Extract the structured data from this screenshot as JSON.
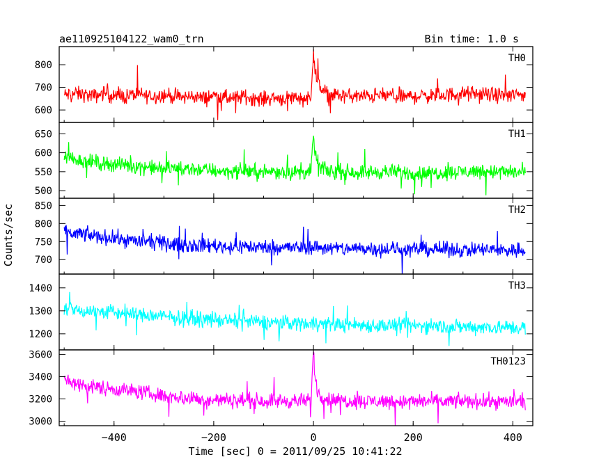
{
  "chart_data": {
    "type": "line",
    "title": "ae110925104122_wam0_trn",
    "subtitle": "Bin time: 1.0 s",
    "xlabel": "Time [sec] 0 = 2011/09/25 10:41:22",
    "ylabel": "Counts/sec",
    "xlim": [
      -510,
      440
    ],
    "x_ticks": [
      -400,
      -200,
      0,
      200,
      400
    ],
    "x_tick_labels": [
      "−400",
      "−200",
      "0",
      "200",
      "400"
    ],
    "panels": [
      {
        "name": "TH0",
        "color": "#ff0000",
        "ylim": [
          545,
          880
        ],
        "y_ticks": [
          600,
          700,
          800
        ],
        "series": [
          {
            "name": "TH0",
            "x": [
              -500,
              -480,
              -460,
              -440,
              -420,
              -400,
              -380,
              -360,
              -340,
              -320,
              -300,
              -280,
              -260,
              -240,
              -220,
              -200,
              -180,
              -160,
              -140,
              -120,
              -100,
              -80,
              -60,
              -40,
              -20,
              -5,
              0,
              3,
              8,
              15,
              30,
              60,
              100,
              140,
              180,
              220,
              260,
              300,
              340,
              380,
              420
            ],
            "values": [
              665,
              672,
              668,
              660,
              675,
              662,
              658,
              670,
              665,
              660,
              668,
              660,
              655,
              662,
              650,
              665,
              655,
              650,
              660,
              652,
              648,
              655,
              650,
              658,
              650,
              655,
              870,
              780,
              720,
              690,
              670,
              662,
              660,
              665,
              658,
              662,
              665,
              672,
              668,
              665,
              668
            ]
          }
        ]
      },
      {
        "name": "TH1",
        "color": "#00ff00",
        "ylim": [
          480,
          680
        ],
        "y_ticks": [
          500,
          550,
          600,
          650
        ],
        "series": [
          {
            "name": "TH1",
            "x": [
              -500,
              -480,
              -460,
              -440,
              -420,
              -400,
              -380,
              -360,
              -340,
              -320,
              -300,
              -280,
              -260,
              -240,
              -220,
              -200,
              -180,
              -160,
              -140,
              -120,
              -100,
              -80,
              -60,
              -40,
              -20,
              -5,
              0,
              3,
              8,
              15,
              30,
              60,
              100,
              140,
              180,
              220,
              260,
              300,
              340,
              380,
              420
            ],
            "values": [
              590,
              585,
              578,
              575,
              572,
              570,
              568,
              565,
              563,
              560,
              558,
              560,
              556,
              558,
              555,
              553,
              552,
              550,
              553,
              550,
              548,
              552,
              550,
              548,
              550,
              548,
              650,
              600,
              575,
              560,
              552,
              550,
              548,
              550,
              548,
              545,
              548,
              550,
              552,
              550,
              548
            ]
          }
        ]
      },
      {
        "name": "TH2",
        "color": "#0000ff",
        "ylim": [
          660,
          870
        ],
        "y_ticks": [
          700,
          750,
          800,
          850
        ],
        "series": [
          {
            "name": "TH2",
            "x": [
              -500,
              -480,
              -460,
              -440,
              -420,
              -400,
              -380,
              -360,
              -340,
              -320,
              -300,
              -280,
              -260,
              -240,
              -220,
              -200,
              -180,
              -160,
              -140,
              -120,
              -100,
              -80,
              -60,
              -40,
              -20,
              0,
              20,
              60,
              100,
              140,
              180,
              220,
              260,
              300,
              340,
              380,
              420
            ],
            "values": [
              775,
              772,
              770,
              765,
              762,
              760,
              755,
              752,
              750,
              748,
              745,
              742,
              740,
              740,
              738,
              740,
              736,
              735,
              738,
              734,
              735,
              733,
              735,
              732,
              734,
              735,
              733,
              730,
              732,
              730,
              728,
              730,
              728,
              727,
              728,
              726,
              728
            ]
          }
        ]
      },
      {
        "name": "TH3",
        "color": "#00ffff",
        "ylim": [
          1130,
          1460
        ],
        "y_ticks": [
          1200,
          1300,
          1400
        ],
        "series": [
          {
            "name": "TH3",
            "x": [
              -500,
              -480,
              -460,
              -440,
              -420,
              -400,
              -380,
              -360,
              -340,
              -320,
              -300,
              -280,
              -260,
              -240,
              -220,
              -200,
              -180,
              -160,
              -140,
              -120,
              -100,
              -80,
              -60,
              -40,
              -20,
              0,
              20,
              60,
              100,
              140,
              180,
              220,
              260,
              300,
              340,
              380,
              420
            ],
            "values": [
              1310,
              1305,
              1300,
              1298,
              1295,
              1292,
              1290,
              1285,
              1280,
              1278,
              1275,
              1270,
              1268,
              1265,
              1262,
              1260,
              1258,
              1255,
              1255,
              1252,
              1250,
              1250,
              1248,
              1248,
              1245,
              1248,
              1245,
              1240,
              1238,
              1236,
              1235,
              1235,
              1232,
              1230,
              1230,
              1228,
              1228
            ]
          }
        ]
      },
      {
        "name": "TH0123",
        "color": "#ff00ff",
        "ylim": [
          2960,
          3640
        ],
        "y_ticks": [
          3000,
          3200,
          3400,
          3600
        ],
        "series": [
          {
            "name": "TH0123",
            "x": [
              -500,
              -480,
              -460,
              -440,
              -420,
              -400,
              -380,
              -360,
              -340,
              -320,
              -300,
              -280,
              -260,
              -240,
              -220,
              -200,
              -180,
              -160,
              -140,
              -120,
              -100,
              -80,
              -60,
              -40,
              -20,
              -5,
              0,
              3,
              8,
              15,
              30,
              60,
              100,
              140,
              180,
              220,
              260,
              300,
              340,
              380,
              420
            ],
            "values": [
              3360,
              3340,
              3320,
              3310,
              3300,
              3290,
              3280,
              3270,
              3260,
              3240,
              3230,
              3220,
              3210,
              3200,
              3195,
              3190,
              3190,
              3185,
              3190,
              3185,
              3180,
              3185,
              3180,
              3182,
              3180,
              3180,
              3640,
              3400,
              3280,
              3220,
              3195,
              3185,
              3180,
              3180,
              3175,
              3178,
              3175,
              3180,
              3178,
              3175,
              3178
            ]
          }
        ]
      }
    ]
  }
}
